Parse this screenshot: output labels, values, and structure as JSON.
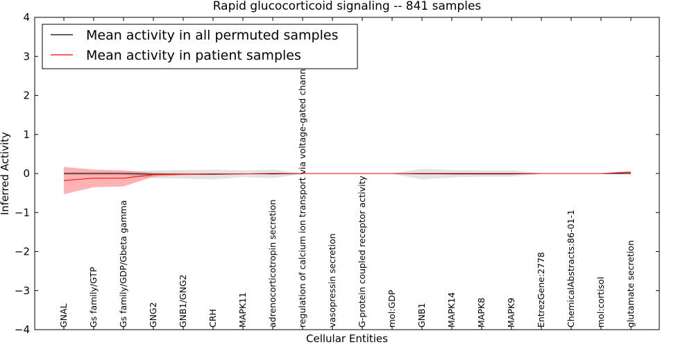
{
  "chart_data": {
    "type": "line",
    "title": "Rapid glucocorticoid signaling -- 841 samples",
    "xlabel": "Cellular Entities",
    "ylabel": "Inferred Activity",
    "ylim": [
      -4,
      4
    ],
    "yticks": [
      -4,
      -3,
      -2,
      -1,
      0,
      1,
      2,
      3,
      4
    ],
    "ytick_labels": [
      "−4",
      "−3",
      "−2",
      "−1",
      "0",
      "1",
      "2",
      "3",
      "4"
    ],
    "categories": [
      "GNAL",
      "Gs family/GTP",
      "Gs family/GDP/Gbeta gamma",
      "GNG2",
      "GNB1/GNG2",
      "CRH",
      "MAPK11",
      "adrenocorticotropin secretion",
      "regulation of calcium ion transport via voltage-gated channel",
      "vasopressin secretion",
      "G-protein coupled receptor activity",
      "mol:GDP",
      "GNB1",
      "MAPK14",
      "MAPK8",
      "MAPK9",
      "EntrezGene:2778",
      "ChemicalAbstracts:86-01-1",
      "mol:cortisol",
      "glutamate secretion"
    ],
    "legend_position": "top-left",
    "series": [
      {
        "name": "Mean activity in all permuted samples",
        "color": "#000000",
        "band_color": "#c0c0c0",
        "values": [
          0.0,
          0.0,
          0.0,
          -0.02,
          -0.02,
          -0.02,
          -0.01,
          -0.01,
          0.0,
          0.0,
          0.0,
          0.0,
          -0.01,
          -0.01,
          -0.01,
          -0.01,
          0.0,
          0.0,
          0.0,
          0.0
        ],
        "upper": [
          0.03,
          0.04,
          0.04,
          0.08,
          0.09,
          0.1,
          0.08,
          0.1,
          0.01,
          0.01,
          0.01,
          0.01,
          0.12,
          0.09,
          0.08,
          0.08,
          0.01,
          0.01,
          0.01,
          0.01
        ],
        "lower": [
          -0.03,
          -0.04,
          -0.04,
          -0.12,
          -0.13,
          -0.15,
          -0.09,
          -0.12,
          -0.01,
          -0.01,
          -0.01,
          -0.01,
          -0.15,
          -0.1,
          -0.08,
          -0.08,
          -0.01,
          -0.01,
          -0.01,
          -0.01
        ]
      },
      {
        "name": "Mean activity in patient samples",
        "color": "#ff0000",
        "band_color": "#ff0000",
        "values": [
          -0.18,
          -0.12,
          -0.12,
          -0.03,
          -0.02,
          -0.01,
          -0.01,
          0.0,
          0.0,
          0.0,
          0.0,
          0.0,
          0.0,
          0.0,
          0.0,
          0.0,
          0.0,
          0.0,
          0.0,
          0.03
        ],
        "upper": [
          0.17,
          0.1,
          0.08,
          0.02,
          0.01,
          0.01,
          0.0,
          0.0,
          0.0,
          0.0,
          0.0,
          0.0,
          0.0,
          0.0,
          0.0,
          0.0,
          0.0,
          0.0,
          0.0,
          0.07
        ],
        "lower": [
          -0.53,
          -0.35,
          -0.33,
          -0.08,
          -0.04,
          -0.02,
          -0.02,
          -0.01,
          0.0,
          0.0,
          0.0,
          0.0,
          0.0,
          0.0,
          0.0,
          0.0,
          0.0,
          0.0,
          0.0,
          0.0
        ]
      }
    ]
  }
}
